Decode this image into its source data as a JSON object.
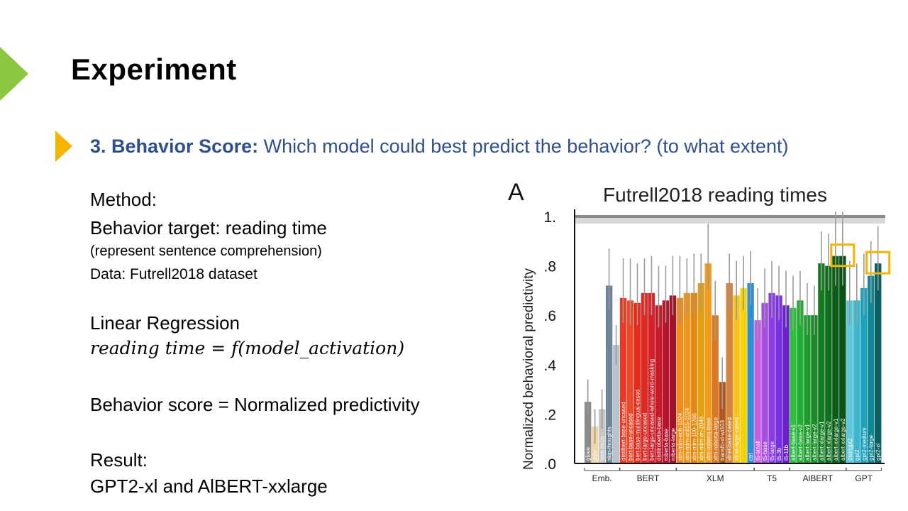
{
  "slide": {
    "title": "Experiment",
    "question_bold": "3. Behavior Score:",
    "question_rest": " Which model could best predict the behavior? (to what extent)",
    "method": "Method:",
    "behavior_target": "Behavior target: reading time",
    "represent": "(represent sentence comprehension)",
    "data_label": "Data:",
    "data_value": " Futrell2018 dataset",
    "linear_regression": "Linear Regression",
    "formula": "reading time = f(model_activation)",
    "behavior_score": "Behavior score = Normalized predictivity",
    "result_label": "Result:",
    "result_value": "GPT2-xl and AlBERT-xxlarge",
    "colors": {
      "green": "#8dc63f",
      "gold": "#f5b400",
      "blue_text": "#2f4f8f"
    }
  },
  "chart_data": {
    "type": "bar",
    "panel_letter": "A",
    "title": "Futrell2018 reading times",
    "xlabel": "",
    "ylabel": "Normalized behavioral predictivity",
    "ylim": [
      0,
      1
    ],
    "yticks": [
      ".0",
      ".2",
      ".4",
      ".6",
      ".8",
      "1."
    ],
    "ceiling_value": 1.0,
    "groups": [
      "Emb.",
      "BERT",
      "XLM",
      "T5",
      "AlBERT",
      "GPT"
    ],
    "highlighted": [
      "albert-xxlarge-v2",
      "gpt2-xl"
    ],
    "highlight_color": "#f5b400",
    "bars": [
      {
        "label": "glove",
        "value": 0.25,
        "color": "#8c8c8c",
        "err": [
          0.2,
          0.34
        ],
        "group": "Emb."
      },
      {
        "label": "w2v",
        "value": 0.15,
        "color": "#f2d7a6",
        "err": [
          0.08,
          0.22
        ],
        "group": "Emb."
      },
      {
        "label": "lstm lm1b",
        "value": 0.22,
        "color": "#c7c7c7",
        "err": [
          0.14,
          0.3
        ],
        "group": "Emb."
      },
      {
        "label": "skip-thoughts",
        "value": 0.72,
        "color": "#6f8497",
        "err": [
          0.62,
          0.87
        ],
        "group": "Emb."
      },
      {
        "label": "",
        "value": 0.48,
        "color": "#b7c3cc",
        "err": [
          0.4,
          0.56
        ],
        "group": "Emb."
      },
      {
        "label": "distilbert-base-uncased",
        "value": 0.67,
        "color": "#e93a23",
        "err": [
          0.57,
          0.83
        ],
        "group": "BERT"
      },
      {
        "label": "bert-base-uncased",
        "value": 0.66,
        "color": "#ea4a2a",
        "err": [
          0.56,
          0.83
        ],
        "group": "BERT"
      },
      {
        "label": "bert-base-multilingual-cased",
        "value": 0.65,
        "color": "#e52b1d",
        "err": [
          0.56,
          0.81
        ],
        "group": "BERT"
      },
      {
        "label": "bert-large-uncased",
        "value": 0.69,
        "color": "#de2a22",
        "err": [
          0.6,
          0.83
        ],
        "group": "BERT"
      },
      {
        "label": "bert-large-uncased-whole-word-masking",
        "value": 0.69,
        "color": "#d81f28",
        "err": [
          0.6,
          0.84
        ],
        "group": "BERT"
      },
      {
        "label": "distilroberta-base",
        "value": 0.64,
        "color": "#c91a2a",
        "err": [
          0.55,
          0.8
        ],
        "group": "BERT"
      },
      {
        "label": "roberta-base",
        "value": 0.66,
        "color": "#b8152c",
        "err": [
          0.57,
          0.8
        ],
        "group": "BERT"
      },
      {
        "label": "roberta-large",
        "value": 0.68,
        "color": "#a3122d",
        "err": [
          0.6,
          0.84
        ],
        "group": "BERT"
      },
      {
        "label": "xlm-mlm-enfr-1024",
        "value": 0.67,
        "color": "#f08c1a",
        "err": [
          0.57,
          0.84
        ],
        "group": "XLM"
      },
      {
        "label": "xlm-mlm-xnli15-1024",
        "value": 0.69,
        "color": "#ef951c",
        "err": [
          0.6,
          0.83
        ],
        "group": "XLM"
      },
      {
        "label": "xlm-mlm-100-1280",
        "value": 0.69,
        "color": "#e68713",
        "err": [
          0.6,
          0.85
        ],
        "group": "XLM"
      },
      {
        "label": "xlm-mlm-en-2048",
        "value": 0.73,
        "color": "#e0a014",
        "err": [
          0.62,
          0.85
        ],
        "group": "XLM"
      },
      {
        "label": "xlm-roberta-base",
        "value": 0.81,
        "color": "#f39a1c",
        "err": [
          0.7,
          0.97
        ],
        "group": "XLM"
      },
      {
        "label": "xlm-roberta-large",
        "value": 0.6,
        "color": "#d97a22",
        "err": [
          0.5,
          0.74
        ],
        "group": "XLM"
      },
      {
        "label": "transfo-xl-wt103",
        "value": 0.33,
        "color": "#b0581f",
        "err": [
          0.22,
          0.43
        ],
        "group": "XLM"
      },
      {
        "label": "xlnet-base-cased",
        "value": 0.73,
        "color": "#d4843c",
        "err": [
          0.62,
          0.85
        ],
        "group": "XLM"
      },
      {
        "label": "xlnet-large-cased",
        "value": 0.68,
        "color": "#f7c21c",
        "err": [
          0.58,
          0.82
        ],
        "group": "XLM"
      },
      {
        "label": "",
        "value": 0.71,
        "color": "#f5d300",
        "err": [
          0.62,
          0.84
        ],
        "group": "XLM"
      },
      {
        "label": "ctrl",
        "value": 0.73,
        "color": "#2e8fd8",
        "err": [
          0.64,
          0.86
        ],
        "group": "XLM"
      },
      {
        "label": "t5-small",
        "value": 0.58,
        "color": "#c85ce0",
        "err": [
          0.5,
          0.71
        ],
        "group": "T5"
      },
      {
        "label": "t5-base",
        "value": 0.65,
        "color": "#a54fdf",
        "err": [
          0.55,
          0.79
        ],
        "group": "T5"
      },
      {
        "label": "t5-large",
        "value": 0.69,
        "color": "#8e3ee0",
        "err": [
          0.59,
          0.82
        ],
        "group": "T5"
      },
      {
        "label": "t5-3b",
        "value": 0.68,
        "color": "#7a2fe0",
        "err": [
          0.58,
          0.8
        ],
        "group": "T5"
      },
      {
        "label": "t5-11b",
        "value": 0.64,
        "color": "#6a1fc8",
        "err": [
          0.55,
          0.78
        ],
        "group": "T5"
      },
      {
        "label": "albert-base-v1",
        "value": 0.63,
        "color": "#2fbf3f",
        "err": [
          0.54,
          0.76
        ],
        "group": "AlBERT"
      },
      {
        "label": "albert-base-v2",
        "value": 0.66,
        "color": "#25ac35",
        "err": [
          0.56,
          0.78
        ],
        "group": "AlBERT"
      },
      {
        "label": "albert-large-v1",
        "value": 0.6,
        "color": "#1f9b2e",
        "err": [
          0.52,
          0.73
        ],
        "group": "AlBERT"
      },
      {
        "label": "albert-large-v2",
        "value": 0.6,
        "color": "#1a8b28",
        "err": [
          0.52,
          0.72
        ],
        "group": "AlBERT"
      },
      {
        "label": "albert-xlarge-v1",
        "value": 0.81,
        "color": "#137c21",
        "err": [
          0.7,
          0.94
        ],
        "group": "AlBERT"
      },
      {
        "label": "albert-xlarge-v2",
        "value": 0.8,
        "color": "#0f6d1d",
        "err": [
          0.7,
          0.93
        ],
        "group": "AlBERT"
      },
      {
        "label": "albert-xxlarge-v1",
        "value": 0.84,
        "color": "#0b5e19",
        "err": [
          0.72,
          1.02
        ],
        "group": "AlBERT"
      },
      {
        "label": "albert-xxlarge-v2",
        "value": 0.84,
        "color": "#0a5117",
        "err": [
          0.72,
          1.02
        ],
        "group": "AlBERT"
      },
      {
        "label": "distilgpt2",
        "value": 0.66,
        "color": "#5fc7dd",
        "err": [
          0.56,
          0.82
        ],
        "group": "GPT"
      },
      {
        "label": "gpt2",
        "value": 0.66,
        "color": "#3db6cd",
        "err": [
          0.56,
          0.81
        ],
        "group": "GPT"
      },
      {
        "label": "gpt2-medium",
        "value": 0.71,
        "color": "#1ea3be",
        "err": [
          0.6,
          0.85
        ],
        "group": "GPT"
      },
      {
        "label": "gpt2-large",
        "value": 0.76,
        "color": "#148796",
        "err": [
          0.65,
          0.9
        ],
        "group": "GPT"
      },
      {
        "label": "gpt2-xl",
        "value": 0.81,
        "color": "#0b5f61",
        "err": [
          0.7,
          0.96
        ],
        "group": "GPT"
      }
    ]
  }
}
